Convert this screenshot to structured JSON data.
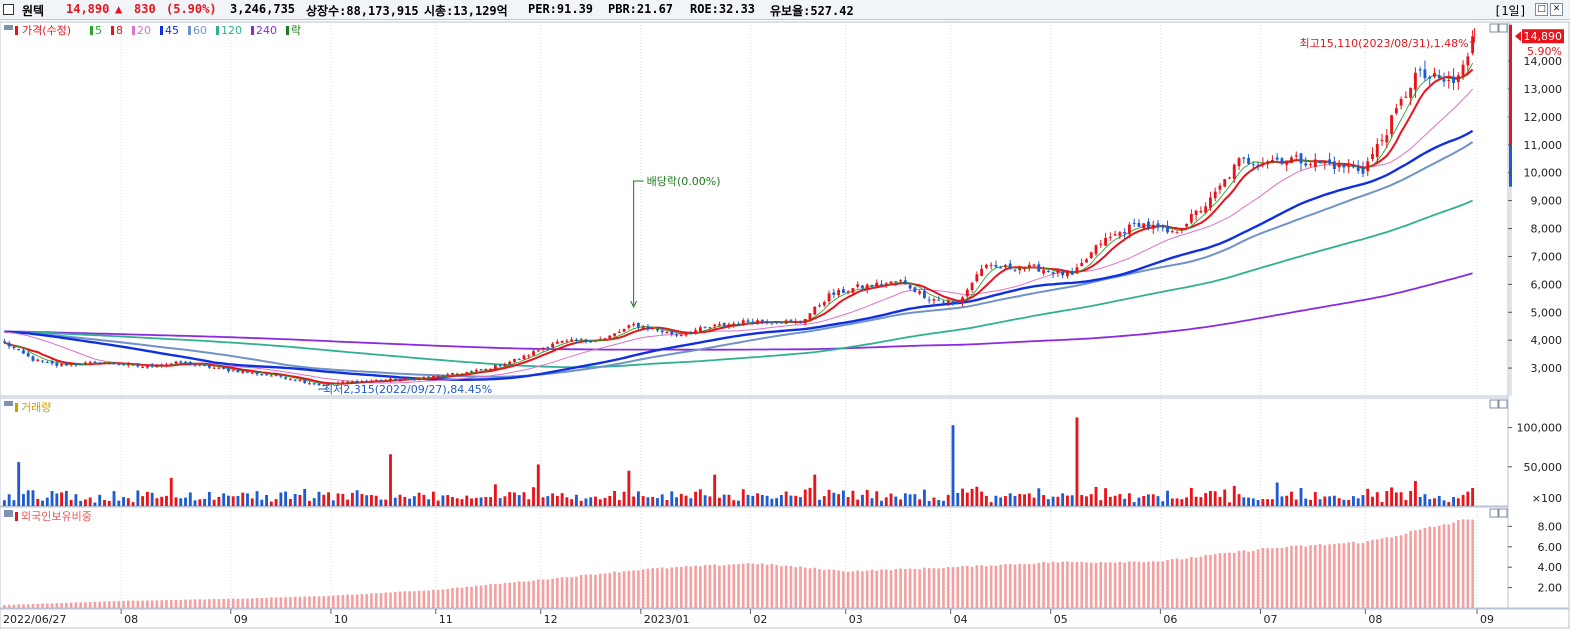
{
  "header": {
    "name": "원텍",
    "price": "14,890",
    "change_arrow": "▲",
    "change": "830",
    "change_pct": "(5.90%)",
    "volume": "3,246,735",
    "listed_shares": "상장수:88,173,915",
    "market_cap": "시총:13,129억",
    "per": "PER:91.39",
    "pbr": "PBR:21.67",
    "roe": "ROE:32.33",
    "float_ratio": "유보율:527.42",
    "period_button": "[1일]"
  },
  "colors": {
    "up": "#e8141b",
    "down": "#1f5bd0",
    "ma5": "#2aa52a",
    "ma8": "#e8141b",
    "ma20": "#e070c8",
    "ma45": "#1030e0",
    "ma60": "#6f93c8",
    "ma120": "#30b090",
    "ma240": "#8a2be0",
    "foreign": "#f4a0a0",
    "annot_green": "#1e7a1e",
    "annot_blue": "#1f5bd0"
  },
  "chart_data": [
    {
      "type": "candlestick",
      "legend": {
        "price_label": "가격(수정)",
        "ma_periods": [
          "5",
          "8",
          "20",
          "45",
          "60",
          "120",
          "240"
        ],
        "ex_label": "락"
      },
      "y_ticks": [
        "14,000",
        "13,000",
        "12,000",
        "11,000",
        "10,000",
        "9,000",
        "8,000",
        "7,000",
        "6,000",
        "5,000",
        "4,000",
        "3,000"
      ],
      "ylim": [
        2000,
        15400
      ],
      "last_price_label": "14,890",
      "last_pct_label": "5.90%",
      "high_annotation": "최고15,110(2023/08/31),1.48%",
      "low_annotation": "최저2,315(2022/09/27),84.45%",
      "dividend_annotation": "배당락(0.00%)",
      "price_anchors": [
        {
          "date": "2022-06-27",
          "close": 3900
        },
        {
          "date": "2022-07-05",
          "close": 3300
        },
        {
          "date": "2022-07-12",
          "close": 3100
        },
        {
          "date": "2022-07-25",
          "close": 3200
        },
        {
          "date": "2022-08-05",
          "close": 3050
        },
        {
          "date": "2022-08-17",
          "close": 3200
        },
        {
          "date": "2022-08-30",
          "close": 2950
        },
        {
          "date": "2022-09-15",
          "close": 2700
        },
        {
          "date": "2022-09-27",
          "close": 2400
        },
        {
          "date": "2022-10-05",
          "close": 2500
        },
        {
          "date": "2022-10-20",
          "close": 2600
        },
        {
          "date": "2022-11-01",
          "close": 2700
        },
        {
          "date": "2022-11-15",
          "close": 2950
        },
        {
          "date": "2022-11-25",
          "close": 3400
        },
        {
          "date": "2022-12-05",
          "close": 3900
        },
        {
          "date": "2022-12-20",
          "close": 4050
        },
        {
          "date": "2022-12-28",
          "close": 4550
        },
        {
          "date": "2023-01-10",
          "close": 4200
        },
        {
          "date": "2023-01-20",
          "close": 4500
        },
        {
          "date": "2023-02-01",
          "close": 4700
        },
        {
          "date": "2023-02-15",
          "close": 4650
        },
        {
          "date": "2023-02-23",
          "close": 5600
        },
        {
          "date": "2023-03-05",
          "close": 5900
        },
        {
          "date": "2023-03-16",
          "close": 6100
        },
        {
          "date": "2023-03-25",
          "close": 5500
        },
        {
          "date": "2023-04-03",
          "close": 5300
        },
        {
          "date": "2023-04-10",
          "close": 6600
        },
        {
          "date": "2023-04-25",
          "close": 6600
        },
        {
          "date": "2023-05-05",
          "close": 6300
        },
        {
          "date": "2023-05-15",
          "close": 7500
        },
        {
          "date": "2023-05-25",
          "close": 8200
        },
        {
          "date": "2023-06-05",
          "close": 7800
        },
        {
          "date": "2023-06-15",
          "close": 9000
        },
        {
          "date": "2023-06-25",
          "close": 10400
        },
        {
          "date": "2023-07-10",
          "close": 10500
        },
        {
          "date": "2023-07-20",
          "close": 10300
        },
        {
          "date": "2023-07-31",
          "close": 10100
        },
        {
          "date": "2023-08-05",
          "close": 11200
        },
        {
          "date": "2023-08-15",
          "close": 13500
        },
        {
          "date": "2023-08-25",
          "close": 13200
        },
        {
          "date": "2023-08-30",
          "close": 14060
        },
        {
          "date": "2023-08-31",
          "close": 14890
        }
      ],
      "ma_end_values": {
        "ma20": 13000,
        "ma45": 11500,
        "ma60": 11100,
        "ma120": 9000,
        "ma240": 6400
      }
    },
    {
      "type": "bar",
      "legend": "거래량",
      "y_ticks": [
        "100,000",
        "50,000"
      ],
      "unit_label": "×100",
      "ylim": [
        0,
        125000
      ],
      "spikes": [
        {
          "date": "2022-06-30",
          "value": 56000
        },
        {
          "date": "2022-08-15",
          "value": 36000
        },
        {
          "date": "2022-10-18",
          "value": 66000
        },
        {
          "date": "2022-11-30",
          "value": 53000
        },
        {
          "date": "2022-12-27",
          "value": 45000
        },
        {
          "date": "2023-01-20",
          "value": 40000
        },
        {
          "date": "2023-02-20",
          "value": 40000
        },
        {
          "date": "2023-03-31",
          "value": 103000
        },
        {
          "date": "2023-05-08",
          "value": 113000
        },
        {
          "date": "2023-07-05",
          "value": 30000
        },
        {
          "date": "2023-08-15",
          "value": 32000
        }
      ]
    },
    {
      "type": "bar",
      "legend": "외국인보유비중",
      "y_ticks": [
        "8.00",
        "6.00",
        "4.00",
        "2.00"
      ],
      "ylim": [
        0,
        9.9
      ],
      "anchors": [
        {
          "date": "2022-06-27",
          "value": 0.3
        },
        {
          "date": "2022-08-01",
          "value": 0.7
        },
        {
          "date": "2022-09-01",
          "value": 0.9
        },
        {
          "date": "2022-10-01",
          "value": 1.2
        },
        {
          "date": "2022-11-01",
          "value": 1.8
        },
        {
          "date": "2022-12-01",
          "value": 2.8
        },
        {
          "date": "2023-01-01",
          "value": 3.8
        },
        {
          "date": "2023-02-01",
          "value": 4.4
        },
        {
          "date": "2023-03-01",
          "value": 3.6
        },
        {
          "date": "2023-04-01",
          "value": 4.0
        },
        {
          "date": "2023-05-01",
          "value": 4.5
        },
        {
          "date": "2023-05-15",
          "value": 4.5
        },
        {
          "date": "2023-06-01",
          "value": 4.6
        },
        {
          "date": "2023-07-01",
          "value": 5.8
        },
        {
          "date": "2023-08-01",
          "value": 6.5
        },
        {
          "date": "2023-08-31",
          "value": 8.8
        }
      ]
    }
  ],
  "x_axis": {
    "labels": [
      {
        "date": "2022-06-27",
        "text": "2022/06/27"
      },
      {
        "date": "2022-08-01",
        "text": "08"
      },
      {
        "date": "2022-09-01",
        "text": "09"
      },
      {
        "date": "2022-10-01",
        "text": "10"
      },
      {
        "date": "2022-11-01",
        "text": "11"
      },
      {
        "date": "2022-12-01",
        "text": "12"
      },
      {
        "date": "2023-01-01",
        "text": "2023/01"
      },
      {
        "date": "2023-02-01",
        "text": "02"
      },
      {
        "date": "2023-03-01",
        "text": "03"
      },
      {
        "date": "2023-04-01",
        "text": "04"
      },
      {
        "date": "2023-05-01",
        "text": "05"
      },
      {
        "date": "2023-06-01",
        "text": "06"
      },
      {
        "date": "2023-07-01",
        "text": "07"
      },
      {
        "date": "2023-08-01",
        "text": "08"
      },
      {
        "date": "2023-09-01",
        "text": "09"
      }
    ],
    "start_date": "2022-06-27",
    "end_date": "2023-08-31"
  }
}
